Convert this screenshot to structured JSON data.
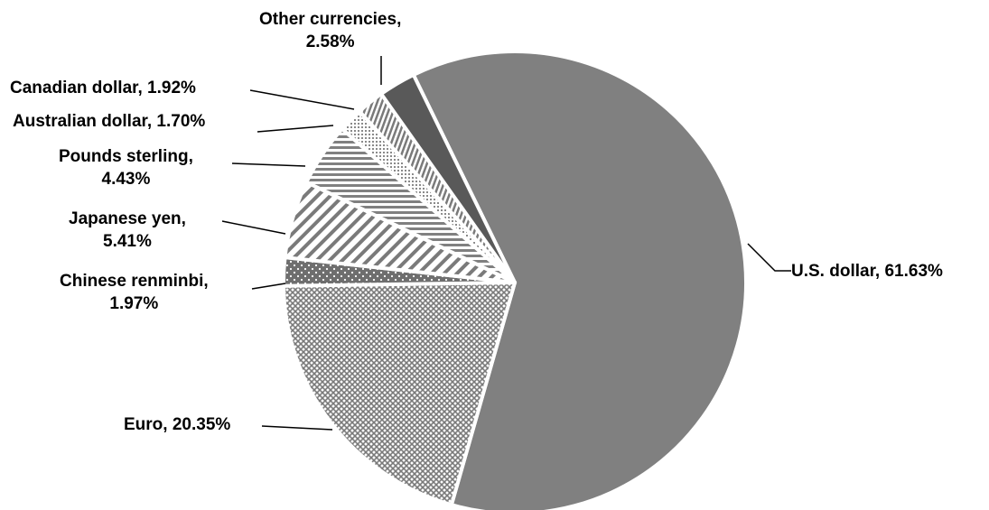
{
  "chart_data": {
    "type": "pie",
    "title": "",
    "start_slice": "U.S. dollar",
    "direction": "clockwise",
    "label_style": "category-name-and-percent-with-leader-lines",
    "slices": [
      {
        "name": "U.S. dollar",
        "value": 61.63,
        "label_lines": [
          "U.S. dollar, 61.63%"
        ],
        "fill": "#808080",
        "pattern": "solid-gray"
      },
      {
        "name": "Euro",
        "value": 20.35,
        "label_lines": [
          "Euro, 20.35%"
        ],
        "fill": "#9a9a9a",
        "pattern": "crosshatch"
      },
      {
        "name": "Chinese renminbi",
        "value": 1.97,
        "label_lines": [
          "Chinese renminbi,",
          "1.97%"
        ],
        "fill": "#6e6e6e",
        "pattern": "dots"
      },
      {
        "name": "Japanese yen",
        "value": 5.41,
        "label_lines": [
          "Japanese yen,",
          "5.41%"
        ],
        "fill": "#808080",
        "pattern": "wide-diagonal-stripes"
      },
      {
        "name": "Pounds sterling",
        "value": 4.43,
        "label_lines": [
          "Pounds sterling,",
          "4.43%"
        ],
        "fill": "#808080",
        "pattern": "horizontal-stripes"
      },
      {
        "name": "Australian dollar",
        "value": 1.7,
        "label_lines": [
          "Australian dollar, 1.70%"
        ],
        "fill": "#b0b0b0",
        "pattern": "fine-dots"
      },
      {
        "name": "Canadian dollar",
        "value": 1.92,
        "label_lines": [
          "Canadian dollar, 1.92%"
        ],
        "fill": "#808080",
        "pattern": "vertical-stripes"
      },
      {
        "name": "Other currencies",
        "value": 2.58,
        "label_lines": [
          "Other currencies,",
          "2.58%"
        ],
        "fill": "#595959",
        "pattern": "solid-dark"
      }
    ]
  },
  "colors": {
    "background": "#ffffff",
    "text": "#000000",
    "slice_border": "#ffffff",
    "leader_line": "#000000"
  }
}
